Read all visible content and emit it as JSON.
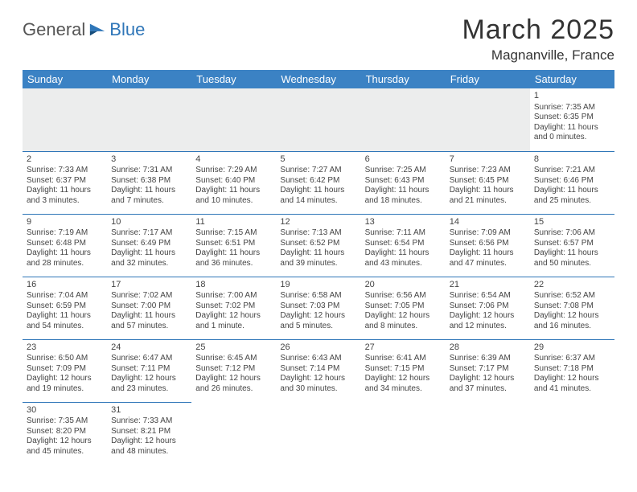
{
  "logo": {
    "text1": "General",
    "text2": "Blue"
  },
  "title": "March 2025",
  "location": "Magnanville, France",
  "colors": {
    "header_bg": "#3b82c4",
    "header_text": "#ffffff",
    "border": "#2f76b8",
    "empty_bg": "#eceded"
  },
  "dayHeaders": [
    "Sunday",
    "Monday",
    "Tuesday",
    "Wednesday",
    "Thursday",
    "Friday",
    "Saturday"
  ],
  "weeks": [
    [
      null,
      null,
      null,
      null,
      null,
      null,
      {
        "n": "1",
        "sunrise": "7:35 AM",
        "sunset": "6:35 PM",
        "daylight": "11 hours and 0 minutes."
      }
    ],
    [
      {
        "n": "2",
        "sunrise": "7:33 AM",
        "sunset": "6:37 PM",
        "daylight": "11 hours and 3 minutes."
      },
      {
        "n": "3",
        "sunrise": "7:31 AM",
        "sunset": "6:38 PM",
        "daylight": "11 hours and 7 minutes."
      },
      {
        "n": "4",
        "sunrise": "7:29 AM",
        "sunset": "6:40 PM",
        "daylight": "11 hours and 10 minutes."
      },
      {
        "n": "5",
        "sunrise": "7:27 AM",
        "sunset": "6:42 PM",
        "daylight": "11 hours and 14 minutes."
      },
      {
        "n": "6",
        "sunrise": "7:25 AM",
        "sunset": "6:43 PM",
        "daylight": "11 hours and 18 minutes."
      },
      {
        "n": "7",
        "sunrise": "7:23 AM",
        "sunset": "6:45 PM",
        "daylight": "11 hours and 21 minutes."
      },
      {
        "n": "8",
        "sunrise": "7:21 AM",
        "sunset": "6:46 PM",
        "daylight": "11 hours and 25 minutes."
      }
    ],
    [
      {
        "n": "9",
        "sunrise": "7:19 AM",
        "sunset": "6:48 PM",
        "daylight": "11 hours and 28 minutes."
      },
      {
        "n": "10",
        "sunrise": "7:17 AM",
        "sunset": "6:49 PM",
        "daylight": "11 hours and 32 minutes."
      },
      {
        "n": "11",
        "sunrise": "7:15 AM",
        "sunset": "6:51 PM",
        "daylight": "11 hours and 36 minutes."
      },
      {
        "n": "12",
        "sunrise": "7:13 AM",
        "sunset": "6:52 PM",
        "daylight": "11 hours and 39 minutes."
      },
      {
        "n": "13",
        "sunrise": "7:11 AM",
        "sunset": "6:54 PM",
        "daylight": "11 hours and 43 minutes."
      },
      {
        "n": "14",
        "sunrise": "7:09 AM",
        "sunset": "6:56 PM",
        "daylight": "11 hours and 47 minutes."
      },
      {
        "n": "15",
        "sunrise": "7:06 AM",
        "sunset": "6:57 PM",
        "daylight": "11 hours and 50 minutes."
      }
    ],
    [
      {
        "n": "16",
        "sunrise": "7:04 AM",
        "sunset": "6:59 PM",
        "daylight": "11 hours and 54 minutes."
      },
      {
        "n": "17",
        "sunrise": "7:02 AM",
        "sunset": "7:00 PM",
        "daylight": "11 hours and 57 minutes."
      },
      {
        "n": "18",
        "sunrise": "7:00 AM",
        "sunset": "7:02 PM",
        "daylight": "12 hours and 1 minute."
      },
      {
        "n": "19",
        "sunrise": "6:58 AM",
        "sunset": "7:03 PM",
        "daylight": "12 hours and 5 minutes."
      },
      {
        "n": "20",
        "sunrise": "6:56 AM",
        "sunset": "7:05 PM",
        "daylight": "12 hours and 8 minutes."
      },
      {
        "n": "21",
        "sunrise": "6:54 AM",
        "sunset": "7:06 PM",
        "daylight": "12 hours and 12 minutes."
      },
      {
        "n": "22",
        "sunrise": "6:52 AM",
        "sunset": "7:08 PM",
        "daylight": "12 hours and 16 minutes."
      }
    ],
    [
      {
        "n": "23",
        "sunrise": "6:50 AM",
        "sunset": "7:09 PM",
        "daylight": "12 hours and 19 minutes."
      },
      {
        "n": "24",
        "sunrise": "6:47 AM",
        "sunset": "7:11 PM",
        "daylight": "12 hours and 23 minutes."
      },
      {
        "n": "25",
        "sunrise": "6:45 AM",
        "sunset": "7:12 PM",
        "daylight": "12 hours and 26 minutes."
      },
      {
        "n": "26",
        "sunrise": "6:43 AM",
        "sunset": "7:14 PM",
        "daylight": "12 hours and 30 minutes."
      },
      {
        "n": "27",
        "sunrise": "6:41 AM",
        "sunset": "7:15 PM",
        "daylight": "12 hours and 34 minutes."
      },
      {
        "n": "28",
        "sunrise": "6:39 AM",
        "sunset": "7:17 PM",
        "daylight": "12 hours and 37 minutes."
      },
      {
        "n": "29",
        "sunrise": "6:37 AM",
        "sunset": "7:18 PM",
        "daylight": "12 hours and 41 minutes."
      }
    ],
    [
      {
        "n": "30",
        "sunrise": "7:35 AM",
        "sunset": "8:20 PM",
        "daylight": "12 hours and 45 minutes."
      },
      {
        "n": "31",
        "sunrise": "7:33 AM",
        "sunset": "8:21 PM",
        "daylight": "12 hours and 48 minutes."
      },
      null,
      null,
      null,
      null,
      null
    ]
  ],
  "labels": {
    "sunrise": "Sunrise: ",
    "sunset": "Sunset: ",
    "daylight": "Daylight: "
  }
}
